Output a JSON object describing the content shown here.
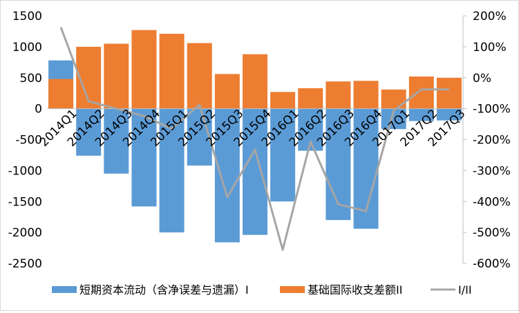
{
  "chart_data": {
    "type": "bar",
    "combo": "stacked-bar-with-line-on-secondary-axis",
    "categories": [
      "2014Q1",
      "2014Q2",
      "2014Q3",
      "2014Q4",
      "2015Q1",
      "2015Q2",
      "2015Q3",
      "2015Q4",
      "2016Q1",
      "2016Q2",
      "2016Q3",
      "2016Q4",
      "2017Q1",
      "2017Q2",
      "2017Q3"
    ],
    "series": [
      {
        "name": "短期资本流动（含净误差与遗漏）I",
        "chart": "bar",
        "axis": "left",
        "color": "#5B9BD5",
        "values": [
          780,
          -760,
          -1050,
          -1580,
          -2000,
          -920,
          -2160,
          -2040,
          -1500,
          -680,
          -1800,
          -1940,
          -330,
          -200,
          -190
        ]
      },
      {
        "name": "基础国际收支差额II",
        "chart": "bar",
        "axis": "left",
        "color": "#ED7D31",
        "values": [
          480,
          1000,
          1050,
          1270,
          1210,
          1060,
          560,
          880,
          270,
          330,
          440,
          450,
          310,
          520,
          500
        ]
      },
      {
        "name": "I/II",
        "chart": "line",
        "axis": "right",
        "color": "#A5A5A5",
        "values": [
          163,
          -76,
          -100,
          -124,
          -165,
          -87,
          -386,
          -232,
          -556,
          -206,
          -409,
          -431,
          -106,
          -38,
          -38
        ]
      }
    ],
    "ylim": [
      -2500,
      1500
    ],
    "y_ticks": [
      "1500",
      "1000",
      "500",
      "0",
      "-500",
      "-1000",
      "-1500",
      "-2000",
      "-2500"
    ],
    "y2lim": [
      -600,
      200
    ],
    "y2_ticks": [
      "200%",
      "100%",
      "0%",
      "-100%",
      "-200%",
      "-300%",
      "-400%",
      "-500%",
      "-600%"
    ],
    "y2_unit": "%",
    "grid": false,
    "legend_position": "bottom"
  }
}
